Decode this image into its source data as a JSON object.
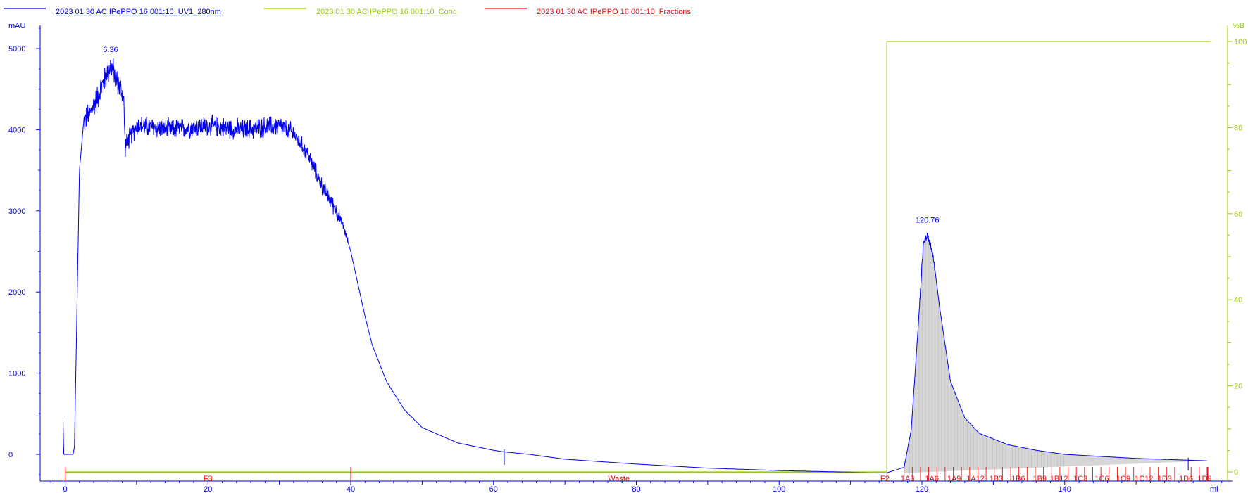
{
  "colors": {
    "uv": "#0000ee",
    "conc": "#99cc00",
    "fractions": "#ee1111",
    "axis": "#0000ee",
    "peak_fill": "#cfcfcf"
  },
  "legend": [
    {
      "name": "2023 01 30 AC IPePPO 16 001:10_UV1_280nm",
      "color": "#0000ee"
    },
    {
      "name": "2023 01 30 AC IPePPO 16 001:10_Conc",
      "color": "#99cc00"
    },
    {
      "name": "2023 01 30 AC IPePPO 16 001:10_Fractions",
      "color": "#ee1111"
    }
  ],
  "chart_data": {
    "type": "line",
    "x_unit": "ml",
    "y_left_unit": "mAU",
    "y_right_unit": "%B",
    "xlim": [
      -3,
      162
    ],
    "ylim_left": [
      -350,
      5400
    ],
    "ylim_right": [
      -2,
      104
    ],
    "x_ticks": [
      0,
      20,
      40,
      60,
      80,
      100,
      120,
      140
    ],
    "y_left_ticks": [
      0,
      1000,
      2000,
      3000,
      4000,
      5000
    ],
    "y_right_ticks": [
      0,
      20,
      40,
      60,
      80,
      100
    ],
    "grid": false,
    "series": [
      {
        "name": "2023 01 30 AC IPePPO 16 001:10_UV1_280nm",
        "axis": "left",
        "x": [
          -0.3,
          -0.2,
          1.1,
          1.3,
          1.6,
          2.0,
          2.6,
          3.5,
          5.0,
          6.36,
          8.2,
          8.4,
          10,
          15,
          20,
          25,
          30,
          32,
          34,
          36,
          38,
          39,
          40,
          41,
          42,
          43,
          45,
          47.5,
          50,
          55,
          60,
          61.5,
          65,
          70,
          80,
          90,
          100,
          110,
          115,
          117.5,
          118.5,
          119.5,
          120.2,
          120.76,
          121.5,
          122.5,
          124,
          126,
          128,
          132,
          136,
          140,
          150,
          160
        ],
        "y": [
          420,
          0,
          0,
          90,
          1500,
          3500,
          4100,
          4200,
          4500,
          4800,
          4400,
          3800,
          4050,
          4000,
          4050,
          4000,
          4050,
          3950,
          3700,
          3300,
          3000,
          2800,
          2500,
          2100,
          1700,
          1350,
          900,
          550,
          330,
          140,
          50,
          30,
          0,
          -60,
          -120,
          -170,
          -200,
          -220,
          -230,
          -160,
          300,
          1600,
          2600,
          2700,
          2500,
          1800,
          900,
          450,
          260,
          120,
          50,
          0,
          -50,
          -80
        ],
        "peaks": [
          {
            "x": 6.36,
            "label": "6.36"
          },
          {
            "x": 120.76,
            "label": "120.76"
          }
        ]
      },
      {
        "name": "2023 01 30 AC IPePPO 16 001:10_Conc",
        "axis": "right",
        "x": [
          0,
          115.1,
          115.1,
          160.5
        ],
        "y": [
          0,
          0,
          100,
          100
        ]
      }
    ],
    "fractions": {
      "name": "2023 01 30 AC IPePPO 16 001:10_Fractions",
      "main": [
        {
          "start": 0,
          "end": 40,
          "label": "F3"
        },
        {
          "start": 40,
          "end": 115.1,
          "label": "Waste"
        }
      ],
      "f2": {
        "x": 115.1,
        "label": "F2"
      },
      "tubes": {
        "start": 117.5,
        "end": 160.0,
        "count": 37
      },
      "labels": [
        {
          "x": 118.0,
          "label": "1A3"
        },
        {
          "x": 121.4,
          "label": "1A6"
        },
        {
          "x": 124.5,
          "label": "1A9"
        },
        {
          "x": 127.5,
          "label": "1A12"
        },
        {
          "x": 130.4,
          "label": "1B3"
        },
        {
          "x": 133.5,
          "label": "1B6"
        },
        {
          "x": 136.5,
          "label": "1B9"
        },
        {
          "x": 139.2,
          "label": "1B12"
        },
        {
          "x": 142.2,
          "label": "1C3"
        },
        {
          "x": 145.2,
          "label": "1C6"
        },
        {
          "x": 148.2,
          "label": "1C9"
        },
        {
          "x": 151.1,
          "label": "1C12"
        },
        {
          "x": 154.0,
          "label": "1D3"
        },
        {
          "x": 157.0,
          "label": "1D6"
        },
        {
          "x": 159.6,
          "label": "1D9"
        }
      ]
    }
  }
}
